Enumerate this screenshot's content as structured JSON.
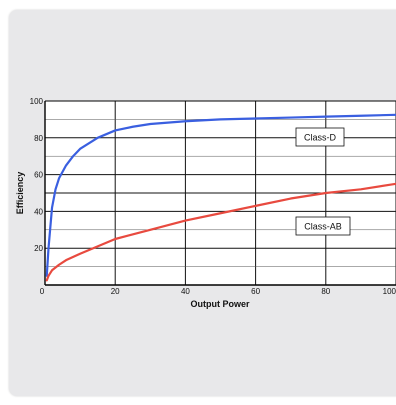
{
  "chart_data": {
    "type": "line",
    "xlabel": "Output Power",
    "ylabel": "Efficiency",
    "xlim": [
      0,
      100
    ],
    "ylim": [
      0,
      100
    ],
    "x_ticks": [
      0,
      20,
      40,
      60,
      80,
      100
    ],
    "y_ticks": [
      20,
      40,
      60,
      80,
      100
    ],
    "grid": true,
    "series": [
      {
        "name": "Class-D",
        "color": "#3a5fe0",
        "x": [
          0.5,
          1,
          2,
          3,
          4,
          6,
          8,
          10,
          15,
          20,
          25,
          30,
          40,
          50,
          60,
          70,
          80,
          90,
          100
        ],
        "y": [
          5,
          20,
          42,
          52,
          58,
          65,
          70,
          74,
          80,
          84,
          86,
          87.5,
          89,
          90,
          90.5,
          91,
          91.5,
          92,
          92.5
        ]
      },
      {
        "name": "Class-AB",
        "color": "#e84a3f",
        "x": [
          0.5,
          1,
          2,
          4,
          6,
          10,
          15,
          20,
          30,
          40,
          50,
          60,
          70,
          80,
          90,
          100
        ],
        "y": [
          2.5,
          5,
          8,
          11,
          13.5,
          17,
          21,
          25,
          30,
          35,
          39,
          43,
          47,
          50,
          52,
          55
        ]
      }
    ]
  }
}
